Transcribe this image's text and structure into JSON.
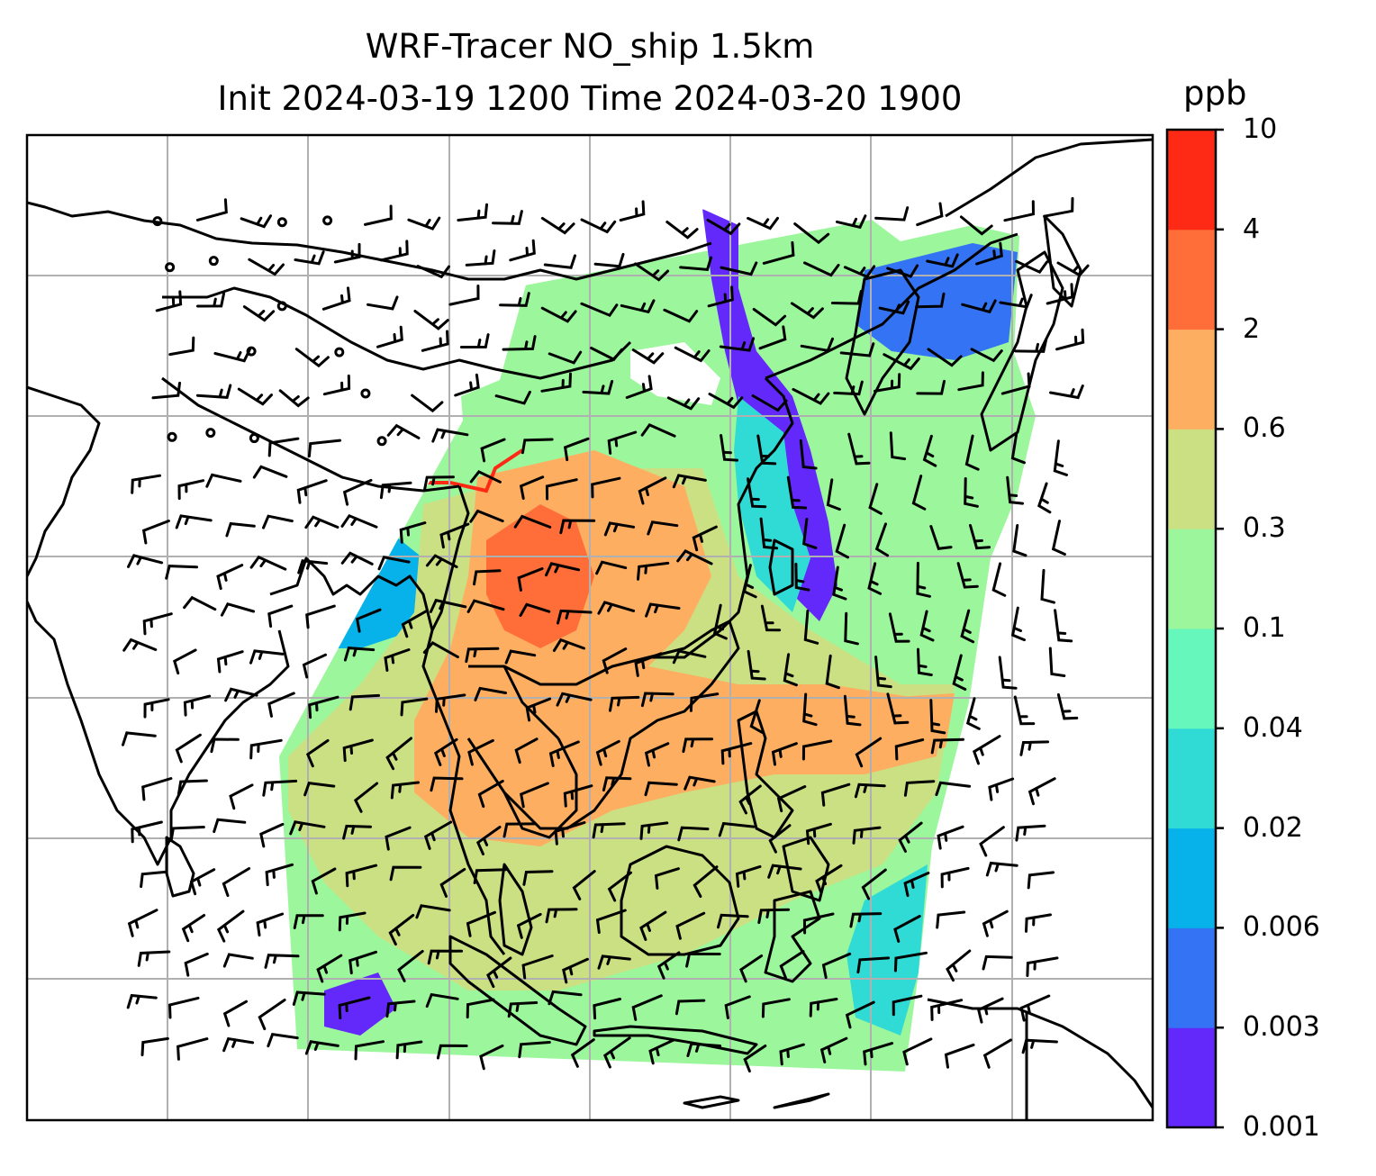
{
  "title": {
    "line1": "WRF-Tracer NO_ship 1.5km",
    "line2": "Init 2024-03-19 1200 Time 2024-03-20 1900"
  },
  "colorbar": {
    "unit": "ppb",
    "ticks": [
      "0.001",
      "0.003",
      "0.006",
      "0.02",
      "0.04",
      "0.1",
      "0.3",
      "0.6",
      "2",
      "4",
      "10"
    ],
    "colors": [
      "#6329fa",
      "#3474f4",
      "#07b1e9",
      "#31dbd5",
      "#66f7bc",
      "#9cf79c",
      "#cbe083",
      "#fdae61",
      "#ff6e39",
      "#ff2a16"
    ]
  },
  "map": {
    "coastline_color": "#000000",
    "gridline_color": "#b0b0b0",
    "land_background": "#ffffff"
  }
}
